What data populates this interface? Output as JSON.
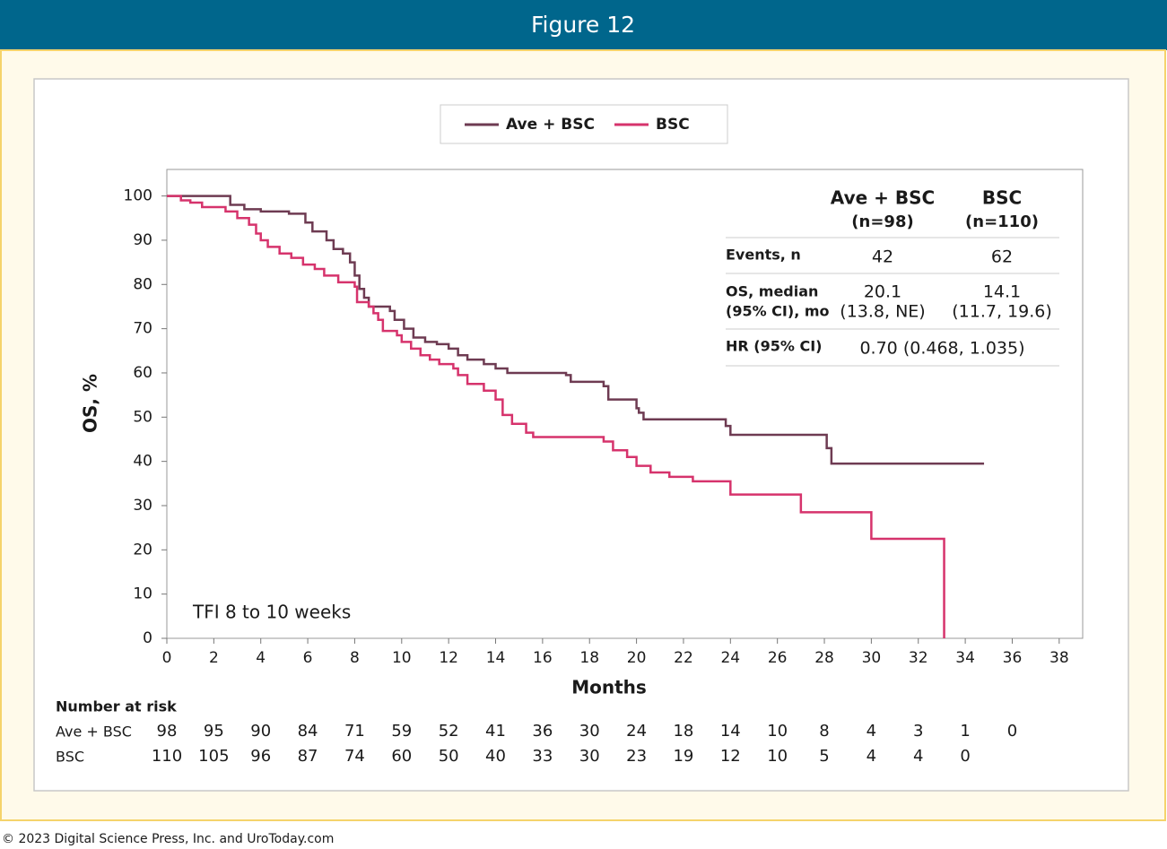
{
  "header": {
    "title": "Figure 12"
  },
  "chart_data": {
    "type": "step",
    "xlabel": "Months",
    "ylabel": "OS, %",
    "annotation": "TFI 8 to 10 weeks",
    "xlim": [
      0,
      39
    ],
    "ylim": [
      0,
      106
    ],
    "xticks": [
      0,
      2,
      4,
      6,
      8,
      10,
      12,
      14,
      16,
      18,
      20,
      22,
      24,
      26,
      28,
      30,
      32,
      34,
      36,
      38
    ],
    "yticks": [
      0,
      10,
      20,
      30,
      40,
      50,
      60,
      70,
      80,
      90,
      100
    ],
    "series": [
      {
        "name": "Ave + BSC",
        "color": "#6e3b52",
        "x": [
          0,
          2.7,
          3.3,
          4,
          5.2,
          5.9,
          6.2,
          6.8,
          7.1,
          7.5,
          7.8,
          8,
          8.2,
          8.4,
          8.6,
          9.5,
          9.7,
          10.1,
          10.5,
          11,
          11.5,
          12,
          12.4,
          12.8,
          13.5,
          14,
          14.5,
          17,
          17.2,
          18.6,
          18.8,
          20,
          20.1,
          20.3,
          23.8,
          24,
          28.1,
          28.3,
          34.8
        ],
        "values": [
          100,
          98,
          97,
          96.5,
          96,
          94,
          92,
          90,
          88,
          87,
          85,
          82,
          79,
          77,
          75,
          74,
          72,
          70,
          68,
          67,
          66.5,
          65.5,
          64,
          63,
          62,
          61,
          60,
          59.5,
          58,
          57,
          54,
          52,
          51,
          49.5,
          48,
          46,
          43,
          39.5,
          39.5
        ]
      },
      {
        "name": "BSC",
        "color": "#d6336c",
        "x": [
          0,
          0.6,
          1,
          1.5,
          2.5,
          3,
          3.5,
          3.8,
          4,
          4.3,
          4.8,
          5.3,
          5.8,
          6.3,
          6.7,
          7.3,
          8,
          8.1,
          8.6,
          8.8,
          9,
          9.2,
          9.8,
          10,
          10.4,
          10.8,
          11.2,
          11.6,
          12.2,
          12.4,
          12.8,
          13.5,
          14,
          14.3,
          14.7,
          15.3,
          15.6,
          18.6,
          19,
          19.6,
          20,
          20.6,
          21.4,
          22.4,
          24,
          27,
          30,
          33.1
        ],
        "values": [
          100,
          99,
          98.5,
          97.5,
          96.5,
          95,
          93.5,
          91.5,
          90,
          88.5,
          87,
          86,
          84.5,
          83.5,
          82,
          80.5,
          79.5,
          76,
          75,
          73.5,
          72,
          69.5,
          68.5,
          67,
          65.5,
          64,
          63,
          62,
          61,
          59.5,
          57.5,
          56,
          54,
          50.5,
          48.5,
          46.5,
          45.5,
          44.5,
          42.5,
          41,
          39,
          37.5,
          36.5,
          35.5,
          32.5,
          28.5,
          22.5,
          0
        ]
      }
    ],
    "stats_table": {
      "columns": [
        {
          "name": "Ave + BSC",
          "n": "(n=98)"
        },
        {
          "name": "BSC",
          "n": "(n=110)"
        }
      ],
      "rows": [
        {
          "label": [
            "Events, n"
          ],
          "cells": [
            [
              "42"
            ],
            [
              "62"
            ]
          ]
        },
        {
          "label": [
            "OS, median",
            "(95% CI), mo"
          ],
          "cells": [
            [
              "20.1",
              "(13.8, NE)"
            ],
            [
              "14.1",
              "(11.7, 19.6)"
            ]
          ]
        },
        {
          "label": [
            "HR (95% CI)"
          ],
          "cells": [
            [
              "0.70 (0.468, 1.035)"
            ]
          ]
        }
      ]
    },
    "risk_table": {
      "title": "Number at risk",
      "rows": [
        {
          "label": "Ave + BSC",
          "values": [
            98,
            95,
            90,
            84,
            71,
            59,
            52,
            41,
            36,
            30,
            24,
            18,
            14,
            10,
            8,
            4,
            3,
            1,
            0
          ]
        },
        {
          "label": "BSC",
          "values": [
            110,
            105,
            96,
            87,
            74,
            60,
            50,
            40,
            33,
            30,
            23,
            19,
            12,
            10,
            5,
            4,
            4,
            0
          ]
        }
      ]
    }
  },
  "footer": "© 2023 Digital Science Press, Inc. and UroToday.com"
}
